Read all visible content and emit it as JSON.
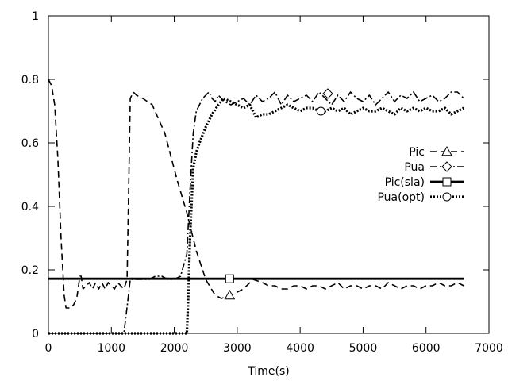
{
  "chart_data": {
    "type": "line",
    "title": "",
    "xlabel": "Time(s)",
    "ylabel": "",
    "xlim": [
      0,
      7000
    ],
    "ylim": [
      0,
      1
    ],
    "xticks": [
      0,
      1000,
      2000,
      3000,
      4000,
      5000,
      6000,
      7000
    ],
    "yticks": [
      0,
      0.2,
      0.4,
      0.6,
      0.8,
      1
    ],
    "xtick_labels": [
      "0",
      "1000",
      "2000",
      "3000",
      "4000",
      "5000",
      "6000",
      "7000"
    ],
    "ytick_labels": [
      "0",
      "0.2",
      "0.4",
      "0.6",
      "0.8",
      "1"
    ],
    "grid": false,
    "legend_position": "right",
    "series": [
      {
        "name": "Pic",
        "style": "dashed",
        "marker": "triangle",
        "marker_at": [
          2880,
          0.12
        ],
        "x": [
          0,
          50,
          100,
          150,
          200,
          250,
          280,
          300,
          350,
          400,
          450,
          500,
          520,
          550,
          600,
          650,
          700,
          750,
          800,
          850,
          900,
          950,
          1000,
          1050,
          1100,
          1150,
          1200,
          1250,
          1300,
          1350,
          1400,
          1500,
          1650,
          1850,
          2050,
          2200,
          2350,
          2500,
          2650,
          2750,
          2880,
          3000,
          3100,
          3250,
          3400,
          3500,
          3600,
          3700,
          3800,
          3900,
          4000,
          4100,
          4200,
          4300,
          4400,
          4500,
          4600,
          4700,
          4800,
          4900,
          5000,
          5100,
          5200,
          5300,
          5400,
          5500,
          5600,
          5700,
          5800,
          5900,
          6000,
          6100,
          6200,
          6300,
          6400,
          6500,
          6600
        ],
        "y": [
          0.8,
          0.78,
          0.72,
          0.55,
          0.3,
          0.12,
          0.08,
          0.08,
          0.08,
          0.09,
          0.11,
          0.18,
          0.18,
          0.14,
          0.15,
          0.16,
          0.14,
          0.16,
          0.14,
          0.16,
          0.14,
          0.16,
          0.15,
          0.14,
          0.16,
          0.15,
          0.14,
          0.17,
          0.74,
          0.76,
          0.75,
          0.74,
          0.72,
          0.63,
          0.48,
          0.38,
          0.26,
          0.17,
          0.12,
          0.11,
          0.12,
          0.13,
          0.14,
          0.17,
          0.16,
          0.15,
          0.15,
          0.14,
          0.14,
          0.15,
          0.15,
          0.14,
          0.15,
          0.15,
          0.14,
          0.15,
          0.16,
          0.14,
          0.15,
          0.15,
          0.14,
          0.15,
          0.15,
          0.14,
          0.16,
          0.15,
          0.14,
          0.15,
          0.15,
          0.14,
          0.15,
          0.15,
          0.16,
          0.15,
          0.15,
          0.16,
          0.15
        ]
      },
      {
        "name": "Pua",
        "style": "dash-dot",
        "marker": "diamond",
        "marker_at": [
          4440,
          0.755
        ],
        "x": [
          0,
          500,
          1000,
          1200,
          1230,
          1260,
          1300,
          1400,
          1500,
          1600,
          1700,
          1800,
          1900,
          2000,
          2100,
          2200,
          2250,
          2300,
          2350,
          2400,
          2450,
          2500,
          2550,
          2600,
          2650,
          2700,
          2750,
          2800,
          2900,
          3000,
          3100,
          3200,
          3300,
          3400,
          3500,
          3600,
          3700,
          3800,
          3900,
          4000,
          4100,
          4200,
          4300,
          4400,
          4500,
          4600,
          4700,
          4800,
          4900,
          5000,
          5100,
          5200,
          5300,
          5400,
          5500,
          5600,
          5700,
          5800,
          5900,
          6000,
          6100,
          6200,
          6300,
          6400,
          6500,
          6600
        ],
        "y": [
          0,
          0,
          0,
          0,
          0.05,
          0.1,
          0.17,
          0.17,
          0.17,
          0.17,
          0.18,
          0.18,
          0.17,
          0.17,
          0.18,
          0.25,
          0.45,
          0.63,
          0.7,
          0.72,
          0.74,
          0.75,
          0.76,
          0.74,
          0.73,
          0.75,
          0.74,
          0.73,
          0.72,
          0.73,
          0.74,
          0.72,
          0.75,
          0.73,
          0.74,
          0.76,
          0.72,
          0.75,
          0.73,
          0.74,
          0.75,
          0.73,
          0.76,
          0.74,
          0.72,
          0.75,
          0.73,
          0.76,
          0.74,
          0.73,
          0.75,
          0.72,
          0.74,
          0.76,
          0.73,
          0.75,
          0.74,
          0.76,
          0.73,
          0.74,
          0.75,
          0.73,
          0.74,
          0.76,
          0.76,
          0.74
        ]
      },
      {
        "name": "Pic(sla)",
        "style": "solid",
        "marker": "square",
        "marker_at": [
          2880,
          0.172
        ],
        "x": [
          0,
          6600
        ],
        "y": [
          0.172,
          0.172
        ]
      },
      {
        "name": "Pua(opt)",
        "style": "dotted",
        "marker": "circle",
        "marker_at": [
          4330,
          0.7
        ],
        "x": [
          0,
          1000,
          2000,
          2200,
          2220,
          2250,
          2300,
          2350,
          2400,
          2500,
          2600,
          2700,
          2780,
          2900,
          3000,
          3100,
          3200,
          3300,
          3400,
          3500,
          3600,
          3700,
          3800,
          3900,
          4000,
          4100,
          4200,
          4300,
          4400,
          4500,
          4600,
          4700,
          4800,
          4900,
          5000,
          5100,
          5200,
          5300,
          5400,
          5500,
          5600,
          5700,
          5800,
          5900,
          6000,
          6100,
          6200,
          6300,
          6400,
          6500,
          6600
        ],
        "y": [
          0,
          0,
          0,
          0,
          0.1,
          0.3,
          0.52,
          0.57,
          0.6,
          0.65,
          0.69,
          0.72,
          0.74,
          0.73,
          0.72,
          0.71,
          0.72,
          0.68,
          0.69,
          0.69,
          0.7,
          0.71,
          0.72,
          0.71,
          0.7,
          0.71,
          0.71,
          0.7,
          0.7,
          0.71,
          0.7,
          0.71,
          0.69,
          0.7,
          0.71,
          0.7,
          0.7,
          0.71,
          0.7,
          0.69,
          0.71,
          0.7,
          0.71,
          0.7,
          0.71,
          0.7,
          0.7,
          0.71,
          0.69,
          0.7,
          0.71
        ]
      }
    ]
  }
}
